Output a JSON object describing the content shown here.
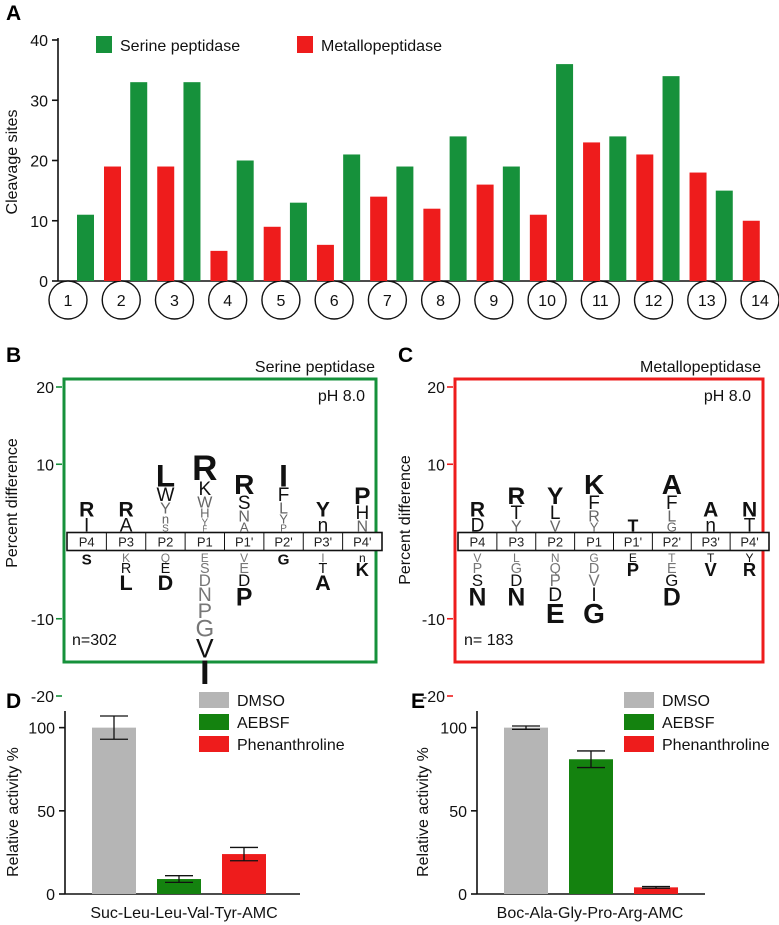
{
  "colors": {
    "serine": "#16913b",
    "metallo": "#ee1c1c",
    "dmso": "#b5b5b5",
    "aebsf": "#14820f",
    "phen": "#ee1c1c"
  },
  "chart_data": [
    {
      "panel": "A",
      "type": "bar",
      "ylabel": "Cleavage sites",
      "ylim": [
        0,
        40
      ],
      "yticks": [
        0,
        10,
        20,
        30,
        40
      ],
      "categories": [
        "1",
        "2",
        "3",
        "4",
        "5",
        "6",
        "7",
        "8",
        "9",
        "10",
        "11",
        "12",
        "13",
        "14"
      ],
      "series": [
        {
          "name": "Serine peptidase",
          "values": [
            11,
            33,
            33,
            20,
            13,
            21,
            19,
            24,
            19,
            36,
            24,
            34,
            15,
            null
          ]
        },
        {
          "name": "Metallopeptidase",
          "values": [
            19,
            19,
            5,
            9,
            6,
            14,
            12,
            16,
            11,
            23,
            21,
            18,
            10,
            null
          ]
        }
      ]
    },
    {
      "panel": "B",
      "type": "sequence-logo",
      "title": "Serine peptidase",
      "annotation": "pH 8.0",
      "n_label": "n=302",
      "ylabel": "Percent difference",
      "ylim": [
        -20,
        20
      ],
      "yticks": [
        20,
        10,
        -10,
        -20
      ],
      "positions": [
        {
          "pos": "P4",
          "up": [
            "R",
            "I"
          ],
          "down": [
            "S"
          ]
        },
        {
          "pos": "P3",
          "up": [
            "R",
            "A"
          ],
          "down": [
            "K",
            "R",
            "L"
          ]
        },
        {
          "pos": "P2",
          "up": [
            "L",
            "W",
            "Y",
            "n",
            "S"
          ],
          "down": [
            "Q",
            "E",
            "D"
          ]
        },
        {
          "pos": "P1",
          "up": [
            "R",
            "K",
            "W",
            "H",
            "Y",
            "F"
          ],
          "down": [
            "E",
            "S",
            "D",
            "N",
            "P",
            "G",
            "V",
            "I"
          ]
        },
        {
          "pos": "P1'",
          "up": [
            "R",
            "S",
            "N",
            "A"
          ],
          "down": [
            "V",
            "E",
            "D",
            "P"
          ]
        },
        {
          "pos": "P2'",
          "up": [
            "I",
            "F",
            "L",
            "Y",
            "P"
          ],
          "down": [
            "G"
          ]
        },
        {
          "pos": "P3'",
          "up": [
            "Y",
            "n"
          ],
          "down": [
            "I",
            "T",
            "A"
          ]
        },
        {
          "pos": "P4'",
          "up": [
            "P",
            "H",
            "N"
          ],
          "down": [
            "n",
            "K"
          ]
        }
      ]
    },
    {
      "panel": "C",
      "type": "sequence-logo",
      "title": "Metallopeptidase",
      "annotation": "pH 8.0",
      "n_label": "n= 183",
      "ylabel": "Percent difference",
      "ylim": [
        -20,
        20
      ],
      "yticks": [
        20,
        10,
        -10,
        -20
      ],
      "positions": [
        {
          "pos": "P4",
          "up": [
            "R",
            "D"
          ],
          "down": [
            "V",
            "P",
            "S",
            "N"
          ]
        },
        {
          "pos": "P3",
          "up": [
            "R",
            "T",
            "Y"
          ],
          "down": [
            "L",
            "G",
            "D",
            "N"
          ]
        },
        {
          "pos": "P2",
          "up": [
            "Y",
            "L",
            "V"
          ],
          "down": [
            "N",
            "Q",
            "P",
            "D",
            "E"
          ]
        },
        {
          "pos": "P1",
          "up": [
            "K",
            "F",
            "R",
            "Y"
          ],
          "down": [
            "G",
            "D",
            "V",
            "I",
            "G"
          ]
        },
        {
          "pos": "P1'",
          "up": [
            "T"
          ],
          "down": [
            "E",
            "P"
          ]
        },
        {
          "pos": "P2'",
          "up": [
            "A",
            "F",
            "L",
            "G"
          ],
          "down": [
            "T",
            "E",
            "G",
            "D"
          ]
        },
        {
          "pos": "P3'",
          "up": [
            "A",
            "n"
          ],
          "down": [
            "T",
            "V"
          ]
        },
        {
          "pos": "P4'",
          "up": [
            "N",
            "T"
          ],
          "down": [
            "Y",
            "R"
          ]
        }
      ]
    },
    {
      "panel": "D",
      "type": "bar",
      "xlabel": "Suc-Leu-Leu-Val-Tyr-AMC",
      "ylabel": "Relative activity %",
      "ylim": [
        0,
        110
      ],
      "yticks": [
        0,
        50,
        100
      ],
      "categories": [
        "DMSO",
        "AEBSF",
        "Phenanthroline"
      ],
      "values": [
        100,
        9,
        24
      ],
      "errors": [
        7,
        2,
        4
      ]
    },
    {
      "panel": "E",
      "type": "bar",
      "xlabel": "Boc-Ala-Gly-Pro-Arg-AMC",
      "ylabel": "Relative activity %",
      "ylim": [
        0,
        110
      ],
      "yticks": [
        0,
        50,
        100
      ],
      "categories": [
        "DMSO",
        "AEBSF",
        "Phenanthroline"
      ],
      "values": [
        100,
        81,
        4
      ],
      "errors": [
        1,
        5,
        0.5
      ]
    }
  ]
}
